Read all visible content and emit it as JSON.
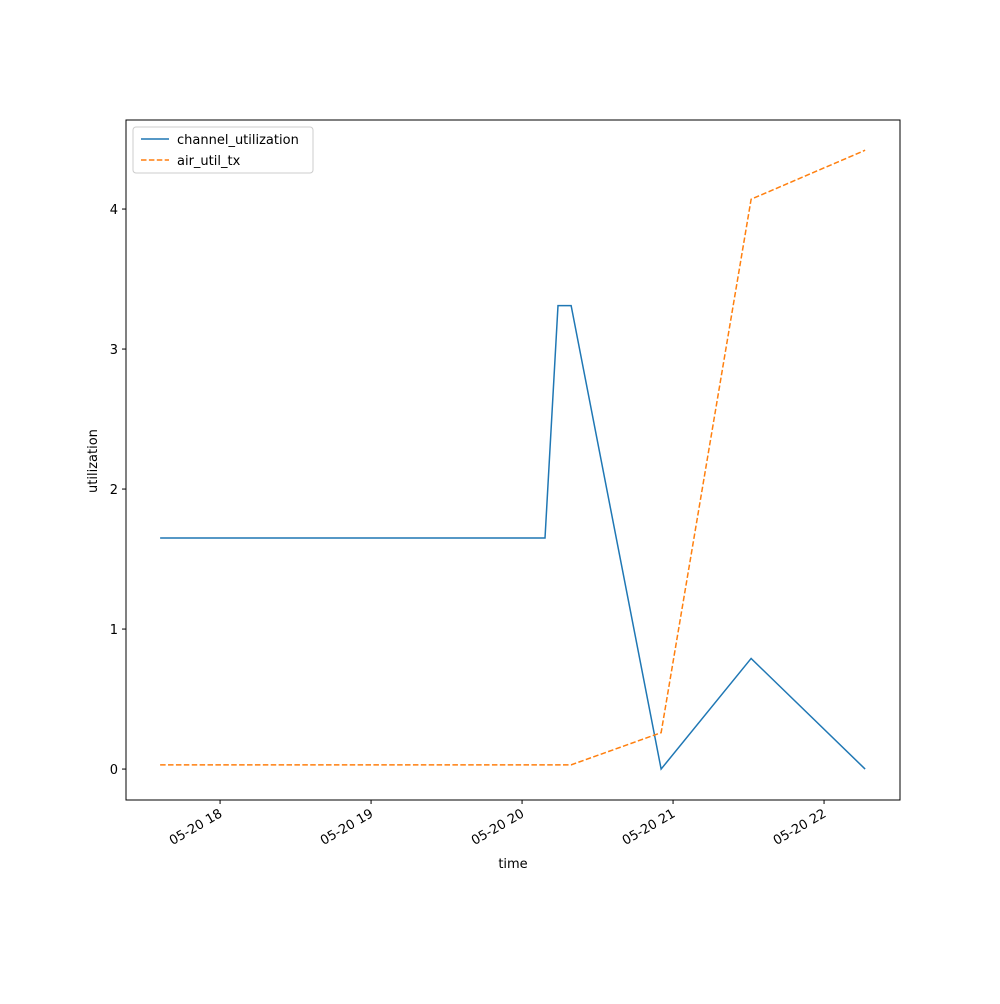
{
  "chart_data": {
    "type": "line",
    "x_label": "time",
    "y_label": "utilization",
    "x": [
      17.603,
      20.152,
      20.238,
      20.325,
      20.921,
      21.517,
      22.272
    ],
    "series": [
      {
        "name": "channel_utilization",
        "color": "#1f77b4",
        "linestyle": "solid",
        "values": [
          1.65,
          1.65,
          3.31,
          3.31,
          0,
          0.79,
          0
        ]
      },
      {
        "name": "air_util_tx",
        "color": "#ff7f0e",
        "linestyle": "dashed",
        "values": [
          0.03,
          0.03,
          0.03,
          0.03,
          0.26,
          4.07,
          4.42
        ]
      }
    ],
    "xlim": [
      17.377,
      22.503
    ],
    "xticks": [
      {
        "value": 18,
        "label": "05-20 18"
      },
      {
        "value": 19,
        "label": "05-20 19"
      },
      {
        "value": 20,
        "label": "05-20 20"
      },
      {
        "value": 21,
        "label": "05-20 21"
      },
      {
        "value": 22,
        "label": "05-20 22"
      }
    ],
    "ylim": [
      -0.221,
      4.636
    ],
    "yticks": [
      0,
      1,
      2,
      3,
      4
    ],
    "grid": false,
    "legend": "upper left"
  }
}
